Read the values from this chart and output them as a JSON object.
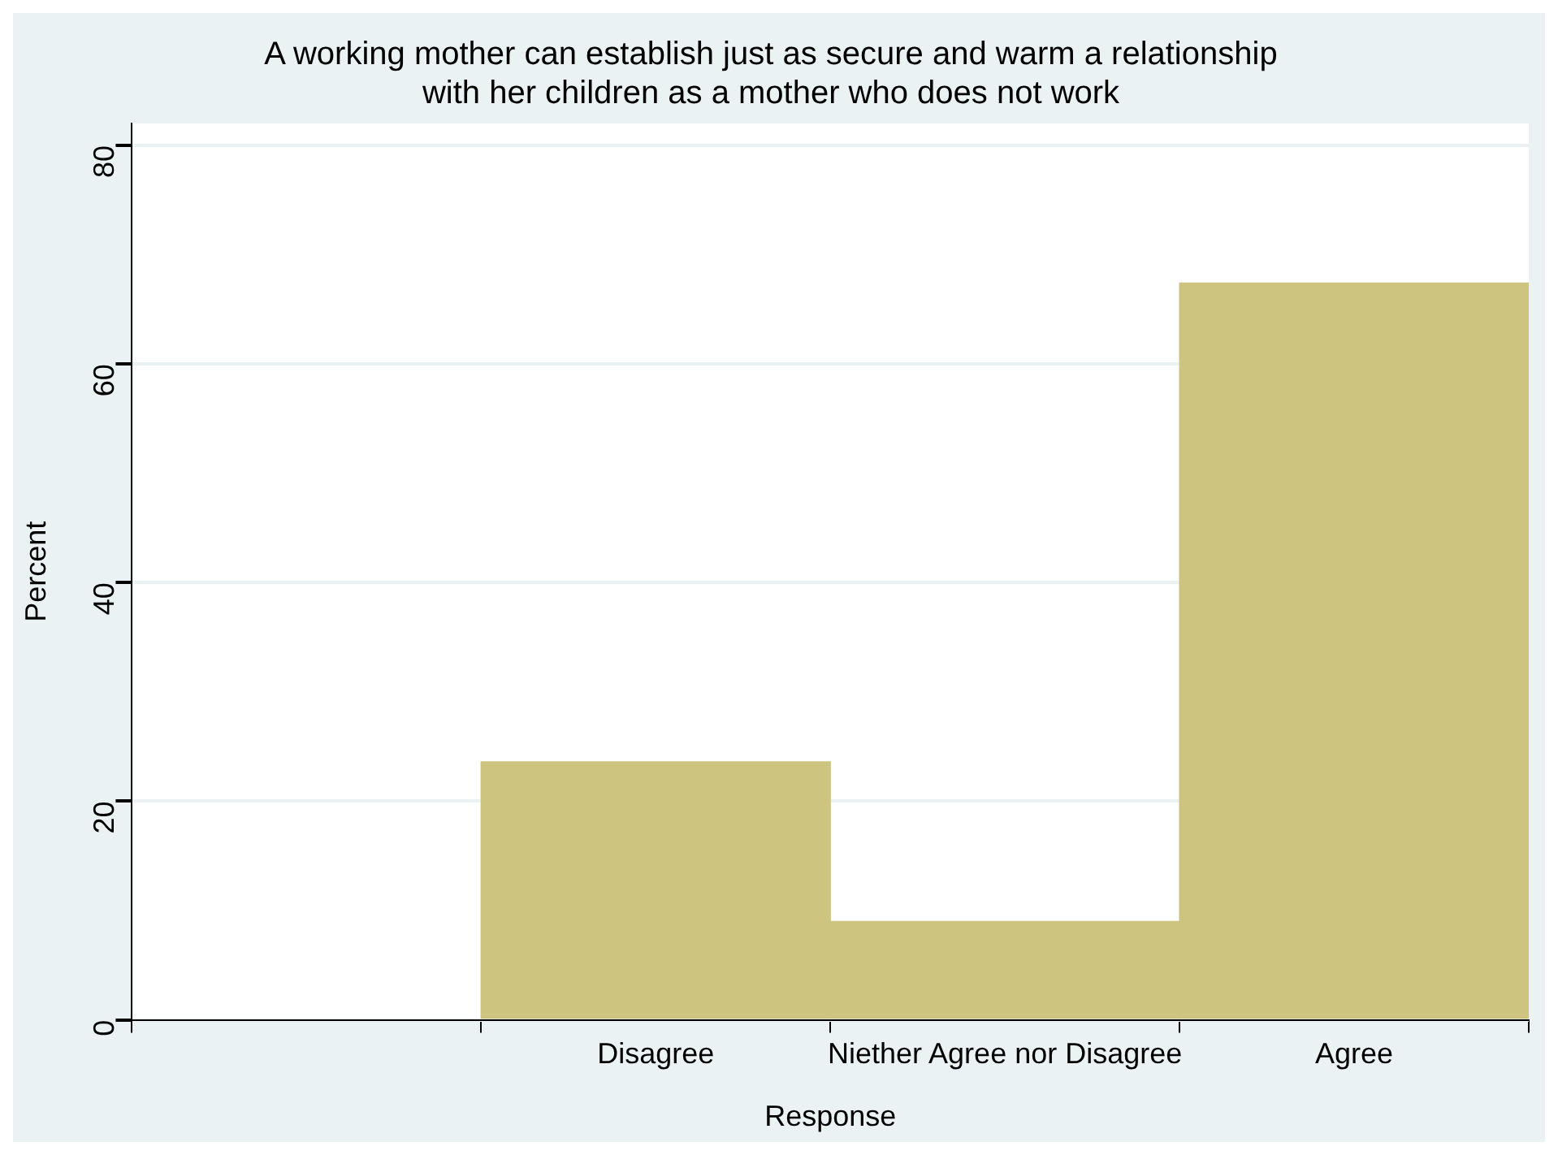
{
  "chart_data": {
    "type": "bar",
    "title": [
      "A working mother can establish just as secure and warm a relationship",
      "with her children as a mother who does not work"
    ],
    "xlabel": "Response",
    "ylabel": "Percent",
    "categories": [
      null,
      "Disagree",
      "Niether Agree nor Disagree",
      "Agree"
    ],
    "values": [
      null,
      23.6,
      9.0,
      67.4
    ],
    "color": "#cdc47f",
    "ylim": [
      0,
      82
    ],
    "yticks": [
      0,
      20,
      40,
      60,
      80
    ],
    "grid": "y",
    "legend": false
  }
}
